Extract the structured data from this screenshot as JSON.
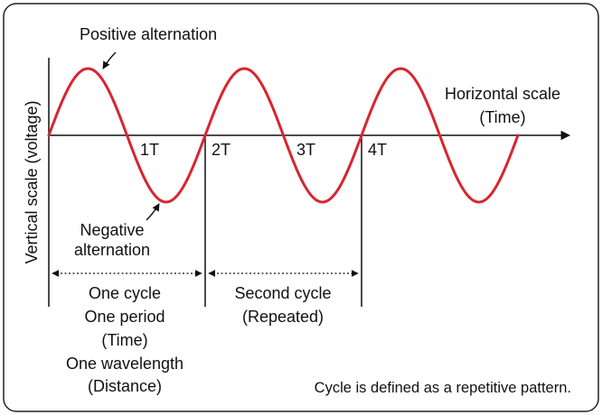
{
  "labels": {
    "positive_alternation": "Positive alternation",
    "negative_alternation_line1": "Negative",
    "negative_alternation_line2": "alternation",
    "horizontal_scale_line1": "Horizontal scale",
    "horizontal_scale_line2": "(Time)",
    "vertical_scale": "Vertical scale (voltage)",
    "tick_1t": "1T",
    "tick_2t": "2T",
    "tick_3t": "3T",
    "tick_4t": "4T"
  },
  "first_cycle": {
    "line1": "One cycle",
    "line2": "One period",
    "line3": "(Time)",
    "line4": "One wavelength",
    "line5": "(Distance)"
  },
  "second_cycle": {
    "line1": "Second cycle",
    "line2": "(Repeated)"
  },
  "footnote": "Cycle is defined as a repetitive pattern.",
  "colors": {
    "wave": "#d7262e",
    "ink": "#111111",
    "border": "#222222"
  }
}
